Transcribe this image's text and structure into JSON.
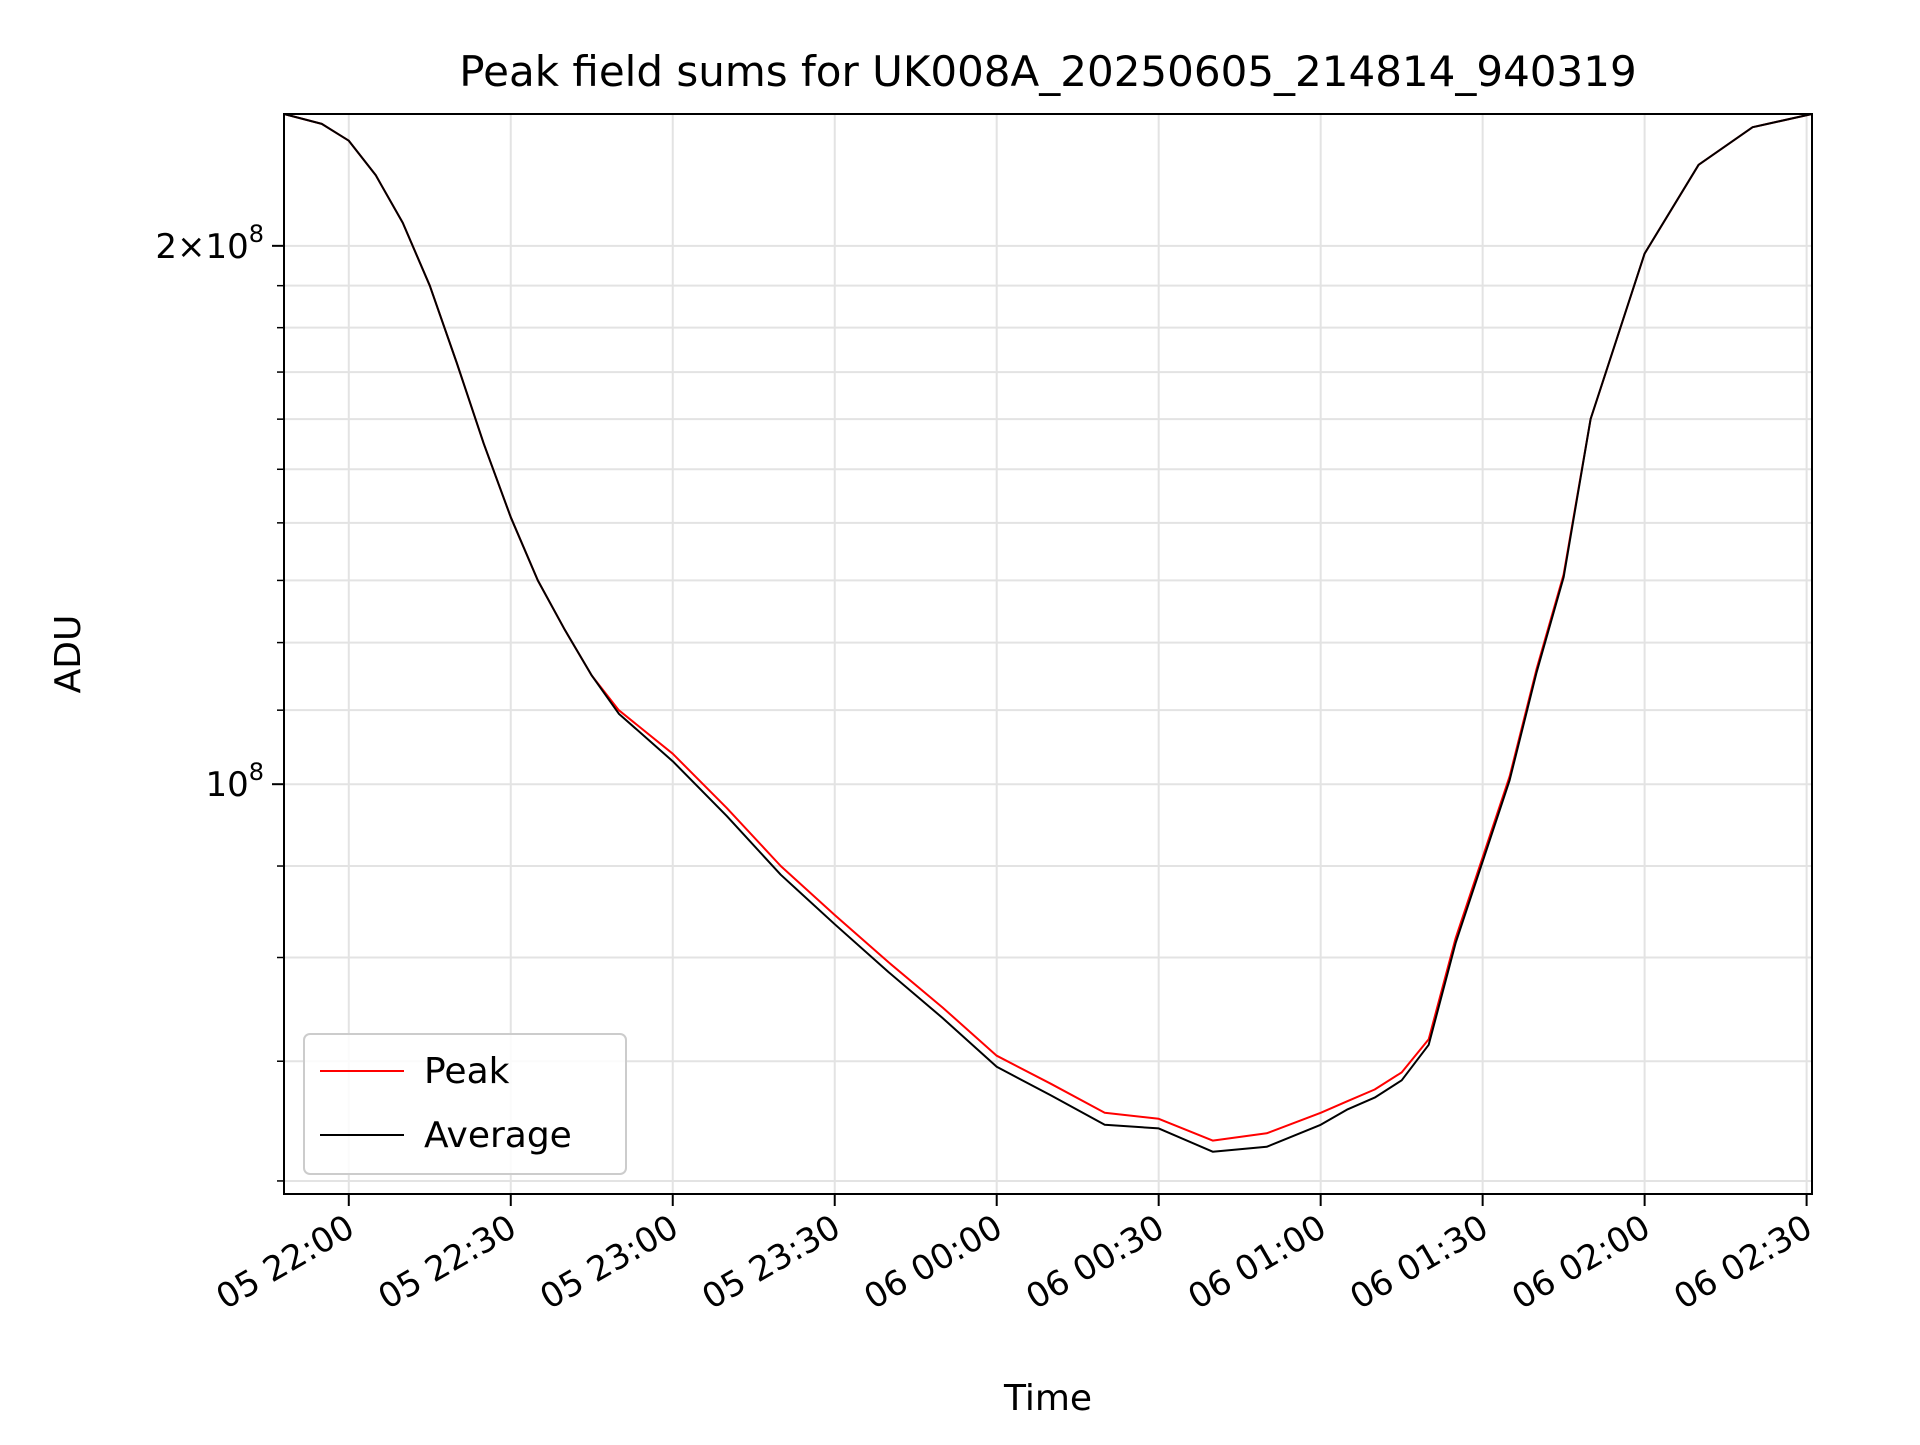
{
  "chart_data": {
    "type": "line",
    "title": "Peak field sums for UK008A_20250605_214814_940319",
    "xlabel": "Time",
    "ylabel": "ADU",
    "x_tick_labels": [
      "05 22:00",
      "05 22:30",
      "05 23:00",
      "05 23:30",
      "06 00:00",
      "06 00:30",
      "06 01:00",
      "06 01:30",
      "06 02:00",
      "06 02:30"
    ],
    "x_ticks": [
      "2025-06-05 22:00",
      "2025-06-05 22:30",
      "2025-06-05 23:00",
      "2025-06-05 23:30",
      "2025-06-06 00:00",
      "2025-06-06 00:30",
      "2025-06-06 01:00",
      "2025-06-06 01:30",
      "2025-06-06 02:00",
      "2025-06-06 02:30"
    ],
    "y_tick_labels": [
      "10^8",
      "2×10^8"
    ],
    "y_ticks": [
      100000000,
      200000000
    ],
    "y_scale": "log",
    "xlim": [
      "2025-06-05 21:48",
      "2025-06-06 02:31"
    ],
    "ylim": [
      59000000,
      237000000
    ],
    "grid": true,
    "legend_position": "lower-left",
    "series": [
      {
        "name": "Peak",
        "color": "#ff0000",
        "x": [
          "2025-06-05 21:48",
          "2025-06-05 21:55",
          "2025-06-05 22:00",
          "2025-06-05 22:05",
          "2025-06-05 22:10",
          "2025-06-05 22:15",
          "2025-06-05 22:20",
          "2025-06-05 22:25",
          "2025-06-05 22:30",
          "2025-06-05 22:35",
          "2025-06-05 22:40",
          "2025-06-05 22:45",
          "2025-06-05 22:50",
          "2025-06-05 23:00",
          "2025-06-05 23:10",
          "2025-06-05 23:20",
          "2025-06-05 23:30",
          "2025-06-05 23:40",
          "2025-06-05 23:50",
          "2025-06-06 00:00",
          "2025-06-06 00:10",
          "2025-06-06 00:20",
          "2025-06-06 00:30",
          "2025-06-06 00:40",
          "2025-06-06 00:50",
          "2025-06-06 01:00",
          "2025-06-06 01:05",
          "2025-06-06 01:10",
          "2025-06-06 01:15",
          "2025-06-06 01:20",
          "2025-06-06 01:25",
          "2025-06-06 01:30",
          "2025-06-06 01:35",
          "2025-06-06 01:40",
          "2025-06-06 01:45",
          "2025-06-06 01:50",
          "2025-06-06 02:00",
          "2025-06-06 02:10",
          "2025-06-06 02:20",
          "2025-06-06 02:31"
        ],
        "y": [
          237000000,
          234000000,
          229000000,
          219000000,
          206000000,
          190000000,
          172000000,
          155000000,
          141000000,
          130000000,
          122000000,
          115000000,
          110000000,
          104000000,
          97000000,
          90000000,
          84500000,
          79500000,
          75000000,
          70500000,
          68000000,
          65500000,
          65000000,
          63200000,
          63800000,
          65500000,
          66500000,
          67500000,
          69000000,
          72000000,
          82000000,
          91000000,
          101000000,
          116000000,
          131000000,
          160000000,
          198000000,
          222000000,
          233000000,
          237000000
        ]
      },
      {
        "name": "Average",
        "color": "#000000",
        "x": [
          "2025-06-05 21:48",
          "2025-06-05 21:55",
          "2025-06-05 22:00",
          "2025-06-05 22:05",
          "2025-06-05 22:10",
          "2025-06-05 22:15",
          "2025-06-05 22:20",
          "2025-06-05 22:25",
          "2025-06-05 22:30",
          "2025-06-05 22:35",
          "2025-06-05 22:40",
          "2025-06-05 22:45",
          "2025-06-05 22:50",
          "2025-06-05 23:00",
          "2025-06-05 23:10",
          "2025-06-05 23:20",
          "2025-06-05 23:30",
          "2025-06-05 23:40",
          "2025-06-05 23:50",
          "2025-06-06 00:00",
          "2025-06-06 00:10",
          "2025-06-06 00:20",
          "2025-06-06 00:30",
          "2025-06-06 00:40",
          "2025-06-06 00:50",
          "2025-06-06 01:00",
          "2025-06-06 01:05",
          "2025-06-06 01:10",
          "2025-06-06 01:15",
          "2025-06-06 01:20",
          "2025-06-06 01:25",
          "2025-06-06 01:30",
          "2025-06-06 01:35",
          "2025-06-06 01:40",
          "2025-06-06 01:45",
          "2025-06-06 01:50",
          "2025-06-06 02:00",
          "2025-06-06 02:10",
          "2025-06-06 02:20",
          "2025-06-06 02:31"
        ],
        "y": [
          237000000,
          234000000,
          229000000,
          219000000,
          206000000,
          190000000,
          172000000,
          155000000,
          141000000,
          130000000,
          122000000,
          115000000,
          109500000,
          103000000,
          96000000,
          89000000,
          83500000,
          78500000,
          74000000,
          69500000,
          67000000,
          64500000,
          64200000,
          62300000,
          62700000,
          64500000,
          65800000,
          66800000,
          68300000,
          71500000,
          81500000,
          90500000,
          100500000,
          115500000,
          130500000,
          160000000,
          198000000,
          222000000,
          233000000,
          237000000
        ]
      }
    ]
  }
}
